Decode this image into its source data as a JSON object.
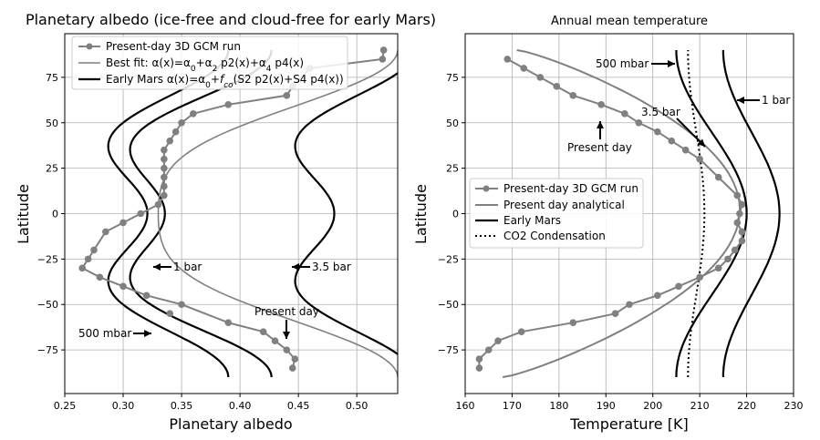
{
  "chart_data": [
    {
      "type": "line",
      "title": "Planetary albedo (ice-free and cloud-free for early Mars)",
      "xlabel": "Planetary albedo",
      "ylabel": "Latitude",
      "xlim": [
        0.25,
        0.535
      ],
      "ylim": [
        -99,
        99
      ],
      "xticks": [
        0.25,
        0.3,
        0.35,
        0.4,
        0.45,
        0.5
      ],
      "xtick_labels": [
        "0.25",
        "0.30",
        "0.35",
        "0.40",
        "0.45",
        "0.50"
      ],
      "yticks": [
        -75,
        -50,
        -25,
        0,
        25,
        50,
        75
      ],
      "ytick_labels": [
        "−75",
        "−50",
        "−25",
        "0",
        "25",
        "50",
        "75"
      ],
      "grid": true,
      "legend_position": "top-left",
      "legend": [
        {
          "label": "Present-day 3D GCM run",
          "style": "gray line with dots"
        },
        {
          "label_html": "Best fit: α(x)=α<tspan baseline-shift='sub' font-size='9'>0</tspan>+α<tspan baseline-shift='sub' font-size='9'>2</tspan> p2(x)+α<tspan baseline-shift='sub' font-size='9'>4</tspan> p4(x)",
          "label": "Best fit: α(x)=α0+α2 p2(x)+α4 p4(x)",
          "style": "thin gray line"
        },
        {
          "label_html": "Early Mars α(x)=α<tspan baseline-shift='sub' font-size='9'>0</tspan>+<tspan font-style='italic'>f</tspan><tspan baseline-shift='sub' font-size='9' font-style='italic'>co</tspan>(S2 p2(x)+S4 p4(x))",
          "label": "Early Mars α(x)=α0+fco(S2 p2(x)+S4 p4(x))",
          "style": "thick black line"
        }
      ],
      "series": [
        {
          "name": "Present-day 3D GCM run",
          "color": "#808080",
          "style": "line-markers",
          "points": [
            [
              0.523,
              90
            ],
            [
              0.522,
              85
            ],
            [
              0.46,
              80
            ],
            [
              0.445,
              70
            ],
            [
              0.44,
              65
            ],
            [
              0.39,
              60
            ],
            [
              0.36,
              55
            ],
            [
              0.35,
              50
            ],
            [
              0.345,
              45
            ],
            [
              0.34,
              40
            ],
            [
              0.335,
              35
            ],
            [
              0.335,
              30
            ],
            [
              0.335,
              25
            ],
            [
              0.335,
              20
            ],
            [
              0.335,
              15
            ],
            [
              0.335,
              10
            ],
            [
              0.33,
              5
            ],
            [
              0.315,
              0
            ],
            [
              0.3,
              -5
            ],
            [
              0.285,
              -10
            ],
            [
              0.275,
              -20
            ],
            [
              0.27,
              -25
            ],
            [
              0.265,
              -30
            ],
            [
              0.28,
              -35
            ],
            [
              0.3,
              -40
            ],
            [
              0.32,
              -45
            ],
            [
              0.35,
              -50
            ],
            [
              0.39,
              -60
            ],
            [
              0.42,
              -65
            ],
            [
              0.43,
              -70
            ],
            [
              0.44,
              -75
            ],
            [
              0.447,
              -80
            ],
            [
              0.445,
              -85
            ],
            [
              0.34,
              -55
            ]
          ]
        },
        {
          "name": "Best fit",
          "color": "#808080",
          "style": "thin"
        },
        {
          "name": "Early Mars",
          "color": "#000000",
          "style": "thick"
        }
      ],
      "annotations": [
        {
          "text": "1 bar"
        },
        {
          "text": "3.5 bar"
        },
        {
          "text": "500 mbar"
        },
        {
          "text": "Present day"
        }
      ]
    },
    {
      "type": "line",
      "title": "Annual mean temperature",
      "xlabel": "Temperature [K]",
      "ylabel": "Latitude",
      "xlim": [
        160,
        230
      ],
      "ylim": [
        -99,
        99
      ],
      "xticks": [
        160,
        170,
        180,
        190,
        200,
        210,
        220,
        230
      ],
      "xtick_labels": [
        "160",
        "170",
        "180",
        "190",
        "200",
        "210",
        "220",
        "230"
      ],
      "yticks": [
        -75,
        -50,
        -25,
        0,
        25,
        50,
        75
      ],
      "ytick_labels": [
        "−75",
        "−50",
        "−25",
        "0",
        "25",
        "50",
        "75"
      ],
      "grid": true,
      "legend_position": "center-left",
      "legend": [
        {
          "label": "Present-day 3D GCM run",
          "style": "gray line with dots"
        },
        {
          "label": "Present day analytical",
          "style": "gray line"
        },
        {
          "label": "Early Mars",
          "style": "black line"
        },
        {
          "label": "CO2 Condensation",
          "style": "dotted black line"
        }
      ],
      "series": [
        {
          "name": "Present-day 3D GCM run",
          "color": "#808080",
          "style": "line-markers",
          "points": [
            [
              169,
              85
            ],
            [
              172.5,
              80
            ],
            [
              176,
              75
            ],
            [
              179.5,
              70
            ],
            [
              183,
              65
            ],
            [
              189,
              60
            ],
            [
              194,
              55
            ],
            [
              197,
              50
            ],
            [
              201,
              45
            ],
            [
              204,
              40
            ],
            [
              207,
              35
            ],
            [
              210,
              30
            ],
            [
              214,
              20
            ],
            [
              218,
              10
            ],
            [
              219,
              5
            ],
            [
              218.5,
              0
            ],
            [
              218,
              -5
            ],
            [
              219,
              -10
            ],
            [
              219,
              -15
            ],
            [
              217.5,
              -20
            ],
            [
              216,
              -25
            ],
            [
              214,
              -30
            ],
            [
              210,
              -35
            ],
            [
              205.5,
              -40
            ],
            [
              201,
              -45
            ],
            [
              195,
              -50
            ],
            [
              192,
              -55
            ],
            [
              183,
              -60
            ],
            [
              172,
              -65
            ],
            [
              167,
              -70
            ],
            [
              165,
              -75
            ],
            [
              163,
              -80
            ],
            [
              163,
              -85
            ]
          ]
        },
        {
          "name": "Present day analytical",
          "color": "#808080",
          "style": "line"
        },
        {
          "name": "Early Mars",
          "color": "#000000",
          "style": "line"
        },
        {
          "name": "CO2 Condensation",
          "color": "#000000",
          "style": "dotted"
        }
      ],
      "annotations": [
        {
          "text": "500 mbar"
        },
        {
          "text": "3.5 bar"
        },
        {
          "text": "1 bar"
        },
        {
          "text": "Present day"
        }
      ]
    }
  ]
}
